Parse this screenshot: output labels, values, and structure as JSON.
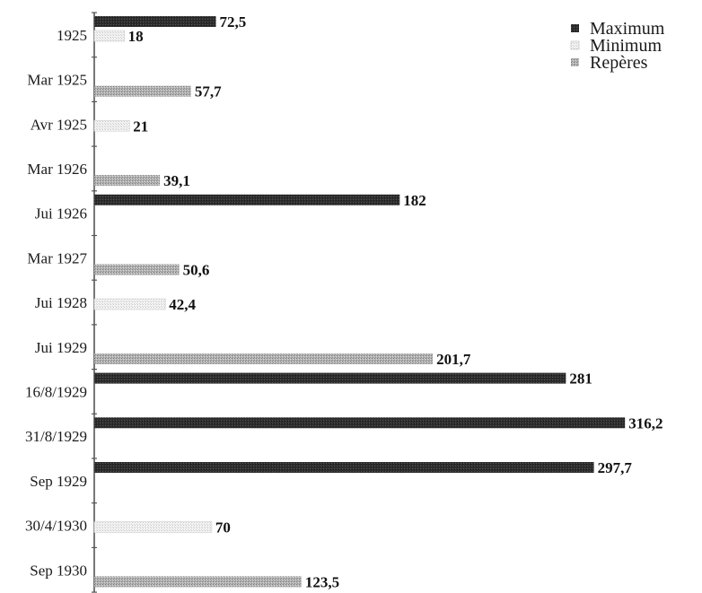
{
  "chart_data": {
    "type": "bar",
    "orientation": "horizontal",
    "categories": [
      "1925",
      "Mar 1925",
      "Avr 1925",
      "Mar 1926",
      "Jui 1926",
      "Mar 1927",
      "Jui 1928",
      "Jui 1929",
      "16/8/1929",
      "31/8/1929",
      "Sep 1929",
      "30/4/1930",
      "Sep 1930"
    ],
    "series": [
      {
        "name": "Maximum",
        "color": "#2b2b2b",
        "values": [
          72.5,
          null,
          null,
          null,
          182,
          null,
          null,
          null,
          281,
          316.2,
          297.7,
          null,
          null
        ]
      },
      {
        "name": "Minimum",
        "color": "#e4e4e4",
        "values": [
          18,
          null,
          21,
          null,
          null,
          null,
          42.4,
          null,
          null,
          null,
          null,
          70,
          null
        ]
      },
      {
        "name": "Repères",
        "color": "#a9a9a9",
        "values": [
          null,
          57.7,
          null,
          39.1,
          null,
          50.6,
          null,
          201.7,
          null,
          null,
          null,
          null,
          123.5
        ]
      }
    ],
    "bars": [
      {
        "category": "1925",
        "series": "Maximum",
        "value": 72.5,
        "label": "72,5"
      },
      {
        "category": "1925",
        "series": "Minimum",
        "value": 18,
        "label": "18"
      },
      {
        "category": "Mar 1925",
        "series": "Repères",
        "value": 57.7,
        "label": "57,7"
      },
      {
        "category": "Avr 1925",
        "series": "Minimum",
        "value": 21,
        "label": "21"
      },
      {
        "category": "Mar 1926",
        "series": "Repères",
        "value": 39.1,
        "label": "39,1"
      },
      {
        "category": "Jui 1926",
        "series": "Maximum",
        "value": 182,
        "label": "182"
      },
      {
        "category": "Mar 1927",
        "series": "Repères",
        "value": 50.6,
        "label": "50,6"
      },
      {
        "category": "Jui 1928",
        "series": "Minimum",
        "value": 42.4,
        "label": "42,4"
      },
      {
        "category": "Jui 1929",
        "series": "Repères",
        "value": 201.7,
        "label": "201,7"
      },
      {
        "category": "16/8/1929",
        "series": "Maximum",
        "value": 281,
        "label": "281"
      },
      {
        "category": "31/8/1929",
        "series": "Maximum",
        "value": 316.2,
        "label": "316,2"
      },
      {
        "category": "Sep 1929",
        "series": "Maximum",
        "value": 297.7,
        "label": "297,7"
      },
      {
        "category": "30/4/1930",
        "series": "Minimum",
        "value": 70,
        "label": "70"
      },
      {
        "category": "Sep 1930",
        "series": "Repères",
        "value": 123.5,
        "label": "123,5"
      }
    ],
    "legend": {
      "position": "top-right",
      "entries": [
        "Maximum",
        "Minimum",
        "Repères"
      ]
    },
    "title": "",
    "xlabel": "",
    "ylabel": "",
    "xlim": [
      0,
      330
    ],
    "grid": false
  }
}
